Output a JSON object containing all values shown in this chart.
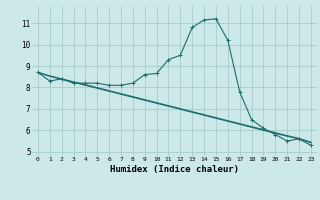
{
  "xlabel": "Humidex (Indice chaleur)",
  "bg_color": "#cce8e8",
  "grid_color": "#aacccc",
  "line_color": "#1a6e6a",
  "xlim": [
    -0.5,
    23.5
  ],
  "ylim": [
    4.8,
    11.8
  ],
  "yticks": [
    5,
    6,
    7,
    8,
    9,
    10,
    11
  ],
  "xticks": [
    0,
    1,
    2,
    3,
    4,
    5,
    6,
    7,
    8,
    9,
    10,
    11,
    12,
    13,
    14,
    15,
    16,
    17,
    18,
    19,
    20,
    21,
    22,
    23
  ],
  "line1_x": [
    0,
    1,
    2,
    3,
    4,
    5,
    6,
    7,
    8,
    9,
    10,
    11,
    12,
    13,
    14,
    15,
    16,
    17,
    18,
    19,
    20,
    21,
    22,
    23
  ],
  "line1_y": [
    8.7,
    8.3,
    8.4,
    8.2,
    8.2,
    8.2,
    8.1,
    8.1,
    8.2,
    8.6,
    8.65,
    9.3,
    9.5,
    10.8,
    11.15,
    11.2,
    10.2,
    7.8,
    6.5,
    6.1,
    5.8,
    5.5,
    5.6,
    5.3
  ],
  "line2_x": [
    0,
    1,
    2,
    3,
    4,
    5,
    6,
    7,
    8,
    9,
    10,
    11,
    12,
    13,
    14,
    15,
    16,
    17,
    18,
    19,
    20,
    21,
    22,
    23
  ],
  "line2_y": [
    8.7,
    8.52,
    8.38,
    8.24,
    8.1,
    7.96,
    7.82,
    7.68,
    7.54,
    7.4,
    7.26,
    7.12,
    6.98,
    6.84,
    6.7,
    6.56,
    6.42,
    6.28,
    6.14,
    6.0,
    5.86,
    5.72,
    5.6,
    5.42
  ],
  "line3_x": [
    0,
    1,
    2,
    3,
    4,
    5,
    6,
    7,
    8,
    9,
    10,
    11,
    12,
    13,
    14,
    15,
    16,
    17,
    18,
    19,
    20,
    21,
    22,
    23
  ],
  "line3_y": [
    8.7,
    8.54,
    8.4,
    8.26,
    8.13,
    7.99,
    7.85,
    7.71,
    7.57,
    7.43,
    7.29,
    7.15,
    7.01,
    6.87,
    6.73,
    6.59,
    6.45,
    6.31,
    6.17,
    6.03,
    5.89,
    5.75,
    5.62,
    5.45
  ]
}
